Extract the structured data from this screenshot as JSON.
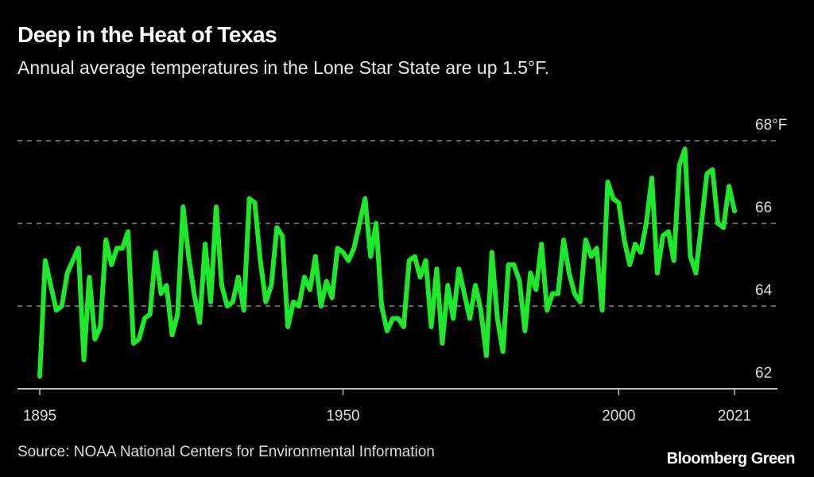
{
  "chart_data": {
    "type": "line",
    "title": "Deep in the Heat of Texas",
    "subtitle": "Annual average temperatures in the Lone Star State are up 1.5°F.",
    "xlabel": "",
    "ylabel": "",
    "x_ticks": [
      "1895",
      "1950",
      "2000",
      "2021"
    ],
    "y_ticks": [
      "62",
      "64",
      "66",
      "68°F"
    ],
    "xlim": [
      1895,
      2021
    ],
    "ylim": [
      62,
      68
    ],
    "grid": true,
    "line_color": "#1ee82a",
    "x_start": 1895,
    "values": [
      62.3,
      65.1,
      64.5,
      63.9,
      64.0,
      64.8,
      65.1,
      65.4,
      62.7,
      64.7,
      63.2,
      63.5,
      65.6,
      65.0,
      65.4,
      65.4,
      65.8,
      63.1,
      63.2,
      63.7,
      63.8,
      65.3,
      64.3,
      64.5,
      63.3,
      63.8,
      66.4,
      65.2,
      64.3,
      63.6,
      65.5,
      64.1,
      66.4,
      64.5,
      64.0,
      64.1,
      64.7,
      63.9,
      66.6,
      66.5,
      65.1,
      64.1,
      64.5,
      65.9,
      65.7,
      63.5,
      64.1,
      64.0,
      64.7,
      64.4,
      65.2,
      64.0,
      64.6,
      64.2,
      65.4,
      65.3,
      65.1,
      65.4,
      66.0,
      66.6,
      65.2,
      66.0,
      64.0,
      63.4,
      63.7,
      63.7,
      63.5,
      65.1,
      65.2,
      64.7,
      65.1,
      63.5,
      64.9,
      63.1,
      64.5,
      63.7,
      64.9,
      64.3,
      63.7,
      64.5,
      63.9,
      62.8,
      65.3,
      63.7,
      62.9,
      65.0,
      65.0,
      64.6,
      63.4,
      64.8,
      64.4,
      65.5,
      63.9,
      64.3,
      64.3,
      65.6,
      64.8,
      64.3,
      64.1,
      65.6,
      65.2,
      65.4,
      63.9,
      67.0,
      66.6,
      66.5,
      65.6,
      65.0,
      65.5,
      65.3,
      66.0,
      67.1,
      64.8,
      65.7,
      65.8,
      65.1,
      67.4,
      67.8,
      65.2,
      64.8,
      66.0,
      67.2,
      67.3,
      66.0,
      65.9,
      66.9,
      66.3
    ]
  },
  "footer": {
    "source": "Source: NOAA National Centers for Environmental Information",
    "brand": "Bloomberg Green"
  }
}
